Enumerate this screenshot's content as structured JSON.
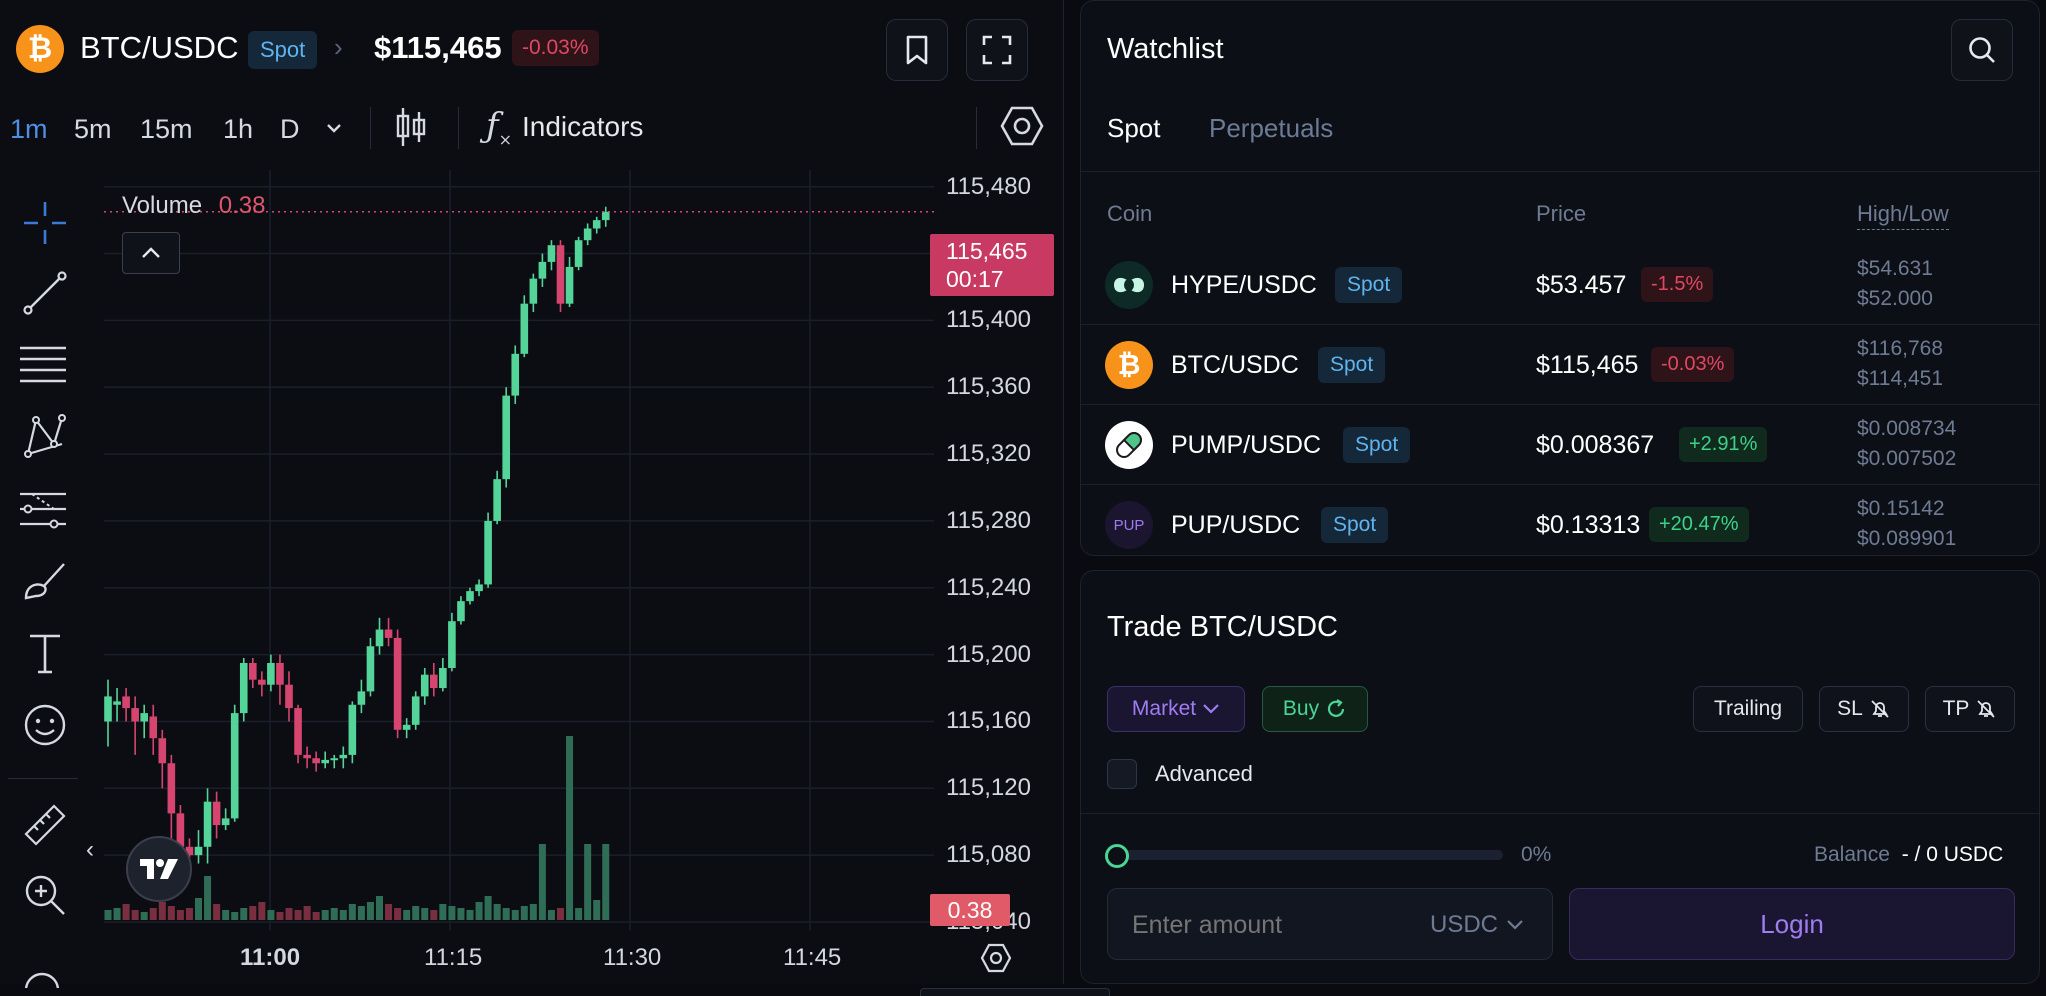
{
  "header": {
    "pair": "BTC/USDC",
    "market_type": "Spot",
    "price": "$115,465",
    "change": "-0.03%",
    "coin_icon": "bitcoin-icon"
  },
  "toolbar": {
    "timeframes": [
      "1m",
      "5m",
      "15m",
      "1h",
      "D"
    ],
    "active_timeframe": "1m",
    "indicators_label": "Indicators"
  },
  "chart": {
    "volume_label": "Volume",
    "volume_value": "0.38",
    "price_axis": [
      "115,480",
      "115,400",
      "115,360",
      "115,320",
      "115,280",
      "115,240",
      "115,200",
      "115,160",
      "115,120",
      "115,080",
      "115,040"
    ],
    "time_axis": [
      "11:00",
      "11:15",
      "11:30",
      "11:45"
    ],
    "last_price_tag": "115,465",
    "countdown": "00:17",
    "volume_tag": "0.38",
    "colors": {
      "up": "#55d49a",
      "down": "#d6456f",
      "vol_up": "#2f6d57",
      "vol_down": "#7a2f41"
    }
  },
  "chart_data": {
    "type": "candlestick",
    "ylim": [
      115040,
      115490
    ],
    "candles": [
      [
        115160,
        115175,
        115145,
        115185
      ],
      [
        115170,
        115172,
        115160,
        115180
      ],
      [
        115175,
        115168,
        115160,
        115180
      ],
      [
        115168,
        115160,
        115140,
        115175
      ],
      [
        115160,
        115165,
        115150,
        115170
      ],
      [
        115163,
        115150,
        115140,
        115170
      ],
      [
        115150,
        115135,
        115120,
        115155
      ],
      [
        115135,
        115105,
        115080,
        115140
      ],
      [
        115105,
        115085,
        115070,
        115110
      ],
      [
        115085,
        115080,
        115070,
        115090
      ],
      [
        115080,
        115085,
        115075,
        115095
      ],
      [
        115085,
        115112,
        115075,
        115120
      ],
      [
        115112,
        115098,
        115090,
        115118
      ],
      [
        115098,
        115102,
        115095,
        115108
      ],
      [
        115102,
        115165,
        115100,
        115170
      ],
      [
        115165,
        115195,
        115160,
        115198
      ],
      [
        115195,
        115185,
        115180,
        115198
      ],
      [
        115185,
        115182,
        115175,
        115190
      ],
      [
        115182,
        115195,
        115178,
        115200
      ],
      [
        115195,
        115182,
        115170,
        115200
      ],
      [
        115182,
        115168,
        115160,
        115190
      ],
      [
        115168,
        115140,
        115135,
        115170
      ],
      [
        115140,
        115138,
        115132,
        115145
      ],
      [
        115138,
        115135,
        115130,
        115142
      ],
      [
        115135,
        115137,
        115132,
        115142
      ],
      [
        115137,
        115138,
        115132,
        115140
      ],
      [
        115138,
        115140,
        115132,
        115145
      ],
      [
        115140,
        115170,
        115135,
        115172
      ],
      [
        115170,
        115178,
        115165,
        115185
      ],
      [
        115178,
        115205,
        115175,
        115210
      ],
      [
        115205,
        115215,
        115200,
        115222
      ],
      [
        115215,
        115210,
        115205,
        115222
      ],
      [
        115210,
        115155,
        115150,
        115215
      ],
      [
        115155,
        115158,
        115150,
        115162
      ],
      [
        115158,
        115175,
        115155,
        115178
      ],
      [
        115175,
        115188,
        115170,
        115192
      ],
      [
        115188,
        115180,
        115175,
        115195
      ],
      [
        115180,
        115192,
        115178,
        115198
      ],
      [
        115192,
        115220,
        115190,
        115225
      ],
      [
        115220,
        115232,
        115218,
        115235
      ],
      [
        115232,
        115238,
        115230,
        115240
      ],
      [
        115238,
        115242,
        115235,
        115245
      ],
      [
        115242,
        115280,
        115240,
        115285
      ],
      [
        115280,
        115305,
        115278,
        115310
      ],
      [
        115305,
        115355,
        115300,
        115360
      ],
      [
        115355,
        115380,
        115350,
        115385
      ],
      [
        115380,
        115410,
        115378,
        115415
      ],
      [
        115410,
        115425,
        115405,
        115428
      ],
      [
        115425,
        115435,
        115420,
        115440
      ],
      [
        115435,
        115445,
        115430,
        115448
      ],
      [
        115445,
        115410,
        115405,
        115448
      ],
      [
        115410,
        115432,
        115408,
        115438
      ],
      [
        115432,
        115448,
        115430,
        115450
      ],
      [
        115448,
        115455,
        115445,
        115458
      ],
      [
        115455,
        115460,
        115452,
        115462
      ],
      [
        115460,
        115465,
        115456,
        115468
      ]
    ],
    "volumes": [
      0.05,
      0.06,
      0.08,
      0.05,
      0.04,
      0.06,
      0.09,
      0.07,
      0.05,
      0.06,
      0.11,
      0.22,
      0.08,
      0.05,
      0.04,
      0.06,
      0.07,
      0.09,
      0.05,
      0.04,
      0.06,
      0.05,
      0.07,
      0.04,
      0.05,
      0.06,
      0.05,
      0.08,
      0.07,
      0.09,
      0.12,
      0.08,
      0.06,
      0.05,
      0.07,
      0.06,
      0.05,
      0.08,
      0.07,
      0.06,
      0.05,
      0.09,
      0.12,
      0.08,
      0.06,
      0.05,
      0.07,
      0.08,
      0.38,
      0.05,
      0.06,
      0.92,
      0.06,
      0.38,
      0.1,
      0.38
    ]
  },
  "watchlist": {
    "title": "Watchlist",
    "tabs": [
      "Spot",
      "Perpetuals"
    ],
    "columns": {
      "coin": "Coin",
      "price": "Price",
      "highlow": "High/Low"
    },
    "rows": [
      {
        "pair": "HYPE/USDC",
        "type": "Spot",
        "price": "$53.457",
        "change": "-1.5%",
        "high": "$54.631",
        "low": "$52.000",
        "icon": "hype-icon"
      },
      {
        "pair": "BTC/USDC",
        "type": "Spot",
        "price": "$115,465",
        "change": "-0.03%",
        "high": "$116,768",
        "low": "$114,451",
        "icon": "bitcoin-icon"
      },
      {
        "pair": "PUMP/USDC",
        "type": "Spot",
        "price": "$0.008367",
        "change": "+2.91%",
        "high": "$0.008734",
        "low": "$0.007502",
        "icon": "pill-icon"
      },
      {
        "pair": "PUP/USDC",
        "type": "Spot",
        "price": "$0.13313",
        "change": "+20.47%",
        "high": "$0.15142",
        "low": "$0.089901",
        "icon": "pup-icon",
        "icon_text": "PUP"
      }
    ]
  },
  "trade": {
    "title": "Trade BTC/USDC",
    "order_type": "Market",
    "side": "Buy",
    "trailing": "Trailing",
    "sl": "SL",
    "tp": "TP",
    "advanced": "Advanced",
    "slider_pct": "0%",
    "balance_label": "Balance",
    "balance_value": "- / 0 USDC",
    "amount_placeholder": "Enter amount",
    "currency": "USDC",
    "login": "Login"
  }
}
